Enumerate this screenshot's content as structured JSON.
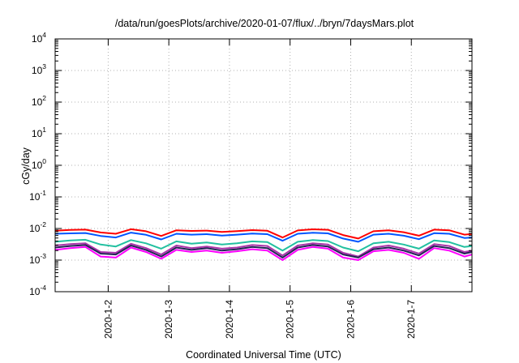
{
  "chart_data": {
    "type": "line",
    "title": "/data/run/goesPlots/archive/2020-01-07/flux/../bryn/7daysMars.plot",
    "xlabel": "Coordinated Universal Time (UTC)",
    "ylabel": "cGy/day",
    "yscale": "log",
    "ylim": [
      0.0001,
      10000
    ],
    "y_tick_labels": [
      {
        "base": "10",
        "exp": "-4"
      },
      {
        "base": "10",
        "exp": "-3"
      },
      {
        "base": "10",
        "exp": "-2"
      },
      {
        "base": "10",
        "exp": "-1"
      },
      {
        "base": "10",
        "exp": "0"
      },
      {
        "base": "10",
        "exp": "1"
      },
      {
        "base": "10",
        "exp": "2"
      },
      {
        "base": "10",
        "exp": "3"
      },
      {
        "base": "10",
        "exp": "4"
      }
    ],
    "xlim": [
      "2020-01-01T03:00",
      "2020-01-08T00:00"
    ],
    "x_tick_labels": [
      "2020-1-2",
      "2020-1-3",
      "2020-1-4",
      "2020-1-5",
      "2020-1-6",
      "2020-1-7"
    ],
    "grid": true,
    "x": [
      "2020-01-01T03:00",
      "2020-01-01T09:00",
      "2020-01-01T15:00",
      "2020-01-01T21:00",
      "2020-01-02T03:00",
      "2020-01-02T09:00",
      "2020-01-02T15:00",
      "2020-01-02T21:00",
      "2020-01-03T03:00",
      "2020-01-03T09:00",
      "2020-01-03T15:00",
      "2020-01-03T21:00",
      "2020-01-04T03:00",
      "2020-01-04T09:00",
      "2020-01-04T15:00",
      "2020-01-04T21:00",
      "2020-01-05T03:00",
      "2020-01-05T09:00",
      "2020-01-05T15:00",
      "2020-01-05T21:00",
      "2020-01-06T03:00",
      "2020-01-06T09:00",
      "2020-01-06T15:00",
      "2020-01-06T21:00",
      "2020-01-07T03:00",
      "2020-01-07T09:00",
      "2020-01-07T15:00",
      "2020-01-07T21:00",
      "2020-01-08T00:00"
    ],
    "series": [
      {
        "color": "#ff0000",
        "values": [
          0.0085,
          0.009,
          0.0092,
          0.0075,
          0.0068,
          0.0095,
          0.0082,
          0.0058,
          0.0088,
          0.0084,
          0.0086,
          0.0078,
          0.0083,
          0.0089,
          0.0085,
          0.0052,
          0.0087,
          0.0094,
          0.0091,
          0.0062,
          0.0048,
          0.0082,
          0.0088,
          0.0076,
          0.0059,
          0.0092,
          0.0088,
          0.0064,
          0.0067
        ]
      },
      {
        "color": "#0055ff",
        "values": [
          0.0068,
          0.007,
          0.0072,
          0.0058,
          0.0052,
          0.0074,
          0.0063,
          0.0045,
          0.0068,
          0.0064,
          0.0066,
          0.006,
          0.0064,
          0.0069,
          0.0066,
          0.0041,
          0.0068,
          0.0073,
          0.007,
          0.0048,
          0.0038,
          0.0064,
          0.0068,
          0.0059,
          0.0046,
          0.0071,
          0.0068,
          0.005,
          0.0052
        ]
      },
      {
        "color": "#22c0a0",
        "values": [
          0.0038,
          0.0042,
          0.0044,
          0.0031,
          0.0027,
          0.0043,
          0.0034,
          0.0023,
          0.0039,
          0.0033,
          0.0036,
          0.0031,
          0.0034,
          0.0039,
          0.0037,
          0.002,
          0.0038,
          0.0043,
          0.004,
          0.0025,
          0.0019,
          0.0034,
          0.0038,
          0.0031,
          0.0023,
          0.0042,
          0.0037,
          0.0026,
          0.0028
        ]
      },
      {
        "color": "#aa33aa",
        "values": [
          0.0029,
          0.0032,
          0.0034,
          0.0018,
          0.0017,
          0.0033,
          0.0024,
          0.0015,
          0.0029,
          0.0024,
          0.0027,
          0.0023,
          0.0025,
          0.003,
          0.0028,
          0.0014,
          0.0029,
          0.0034,
          0.0031,
          0.0017,
          0.0013,
          0.0025,
          0.0029,
          0.0023,
          0.0016,
          0.0032,
          0.0028,
          0.0018,
          0.002
        ]
      },
      {
        "color": "#222255",
        "values": [
          0.0025,
          0.0028,
          0.003,
          0.0016,
          0.0015,
          0.0029,
          0.0021,
          0.0013,
          0.0025,
          0.0021,
          0.0024,
          0.002,
          0.0022,
          0.0026,
          0.0024,
          0.0012,
          0.0025,
          0.003,
          0.0027,
          0.0015,
          0.0012,
          0.0022,
          0.0025,
          0.002,
          0.0014,
          0.0028,
          0.0024,
          0.0016,
          0.0018
        ]
      },
      {
        "color": "#ff00ff",
        "values": [
          0.0021,
          0.0024,
          0.0026,
          0.0013,
          0.0012,
          0.0025,
          0.0018,
          0.0011,
          0.0021,
          0.0018,
          0.002,
          0.0017,
          0.0019,
          0.0022,
          0.002,
          0.001,
          0.0021,
          0.0026,
          0.0023,
          0.0012,
          0.001,
          0.0019,
          0.0021,
          0.0017,
          0.0011,
          0.0024,
          0.002,
          0.0013,
          0.0015
        ]
      }
    ]
  }
}
